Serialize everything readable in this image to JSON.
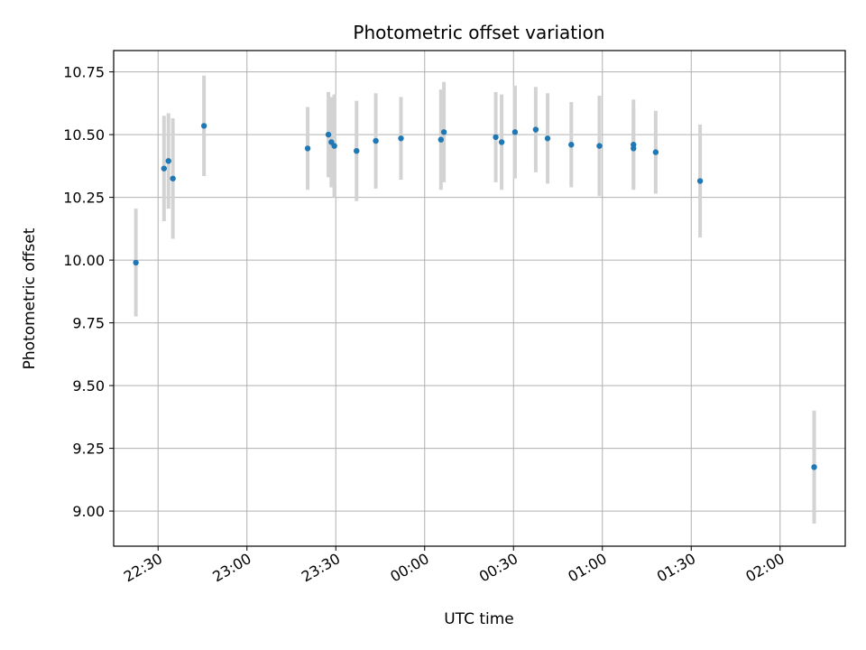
{
  "chart_data": {
    "type": "scatter",
    "title": "Photometric offset variation",
    "xlabel": "UTC time",
    "ylabel": "Photometric offset",
    "xlim": [
      "22:15",
      "02:22"
    ],
    "ylim": [
      8.86,
      10.835
    ],
    "x_ticks": [
      "22:30",
      "23:00",
      "23:30",
      "00:00",
      "00:30",
      "01:00",
      "01:30",
      "02:00"
    ],
    "y_ticks": [
      "9.00",
      "9.25",
      "9.50",
      "9.75",
      "10.00",
      "10.25",
      "10.50",
      "10.75"
    ],
    "grid": true,
    "colors": {
      "points": "#1f77b4",
      "error_bars": "#d3d3d3",
      "grid": "#b0b0b0"
    },
    "points": [
      {
        "x": "22:22:30",
        "y": 9.99,
        "err": 0.215
      },
      {
        "x": "22:32:00",
        "y": 10.365,
        "err": 0.21
      },
      {
        "x": "22:33:30",
        "y": 10.395,
        "err": 0.19
      },
      {
        "x": "22:35:00",
        "y": 10.325,
        "err": 0.24
      },
      {
        "x": "22:45:30",
        "y": 10.535,
        "err": 0.2
      },
      {
        "x": "23:20:30",
        "y": 10.445,
        "err": 0.165
      },
      {
        "x": "23:27:30",
        "y": 10.5,
        "err": 0.17
      },
      {
        "x": "23:28:30",
        "y": 10.47,
        "err": 0.18
      },
      {
        "x": "23:29:30",
        "y": 10.455,
        "err": 0.205
      },
      {
        "x": "23:37:00",
        "y": 10.435,
        "err": 0.2
      },
      {
        "x": "23:43:30",
        "y": 10.475,
        "err": 0.19
      },
      {
        "x": "23:52:00",
        "y": 10.485,
        "err": 0.165
      },
      {
        "x": "00:05:30",
        "y": 10.48,
        "err": 0.2
      },
      {
        "x": "00:06:30",
        "y": 10.51,
        "err": 0.2
      },
      {
        "x": "00:24:00",
        "y": 10.49,
        "err": 0.18
      },
      {
        "x": "00:26:00",
        "y": 10.47,
        "err": 0.19
      },
      {
        "x": "00:30:30",
        "y": 10.51,
        "err": 0.185
      },
      {
        "x": "00:37:30",
        "y": 10.52,
        "err": 0.17
      },
      {
        "x": "00:41:30",
        "y": 10.485,
        "err": 0.18
      },
      {
        "x": "00:49:30",
        "y": 10.46,
        "err": 0.17
      },
      {
        "x": "00:59:00",
        "y": 10.455,
        "err": 0.2
      },
      {
        "x": "01:10:30",
        "y": 10.46,
        "err": 0.18
      },
      {
        "x": "01:10:30",
        "y": 10.445,
        "err": 0.16
      },
      {
        "x": "01:18:00",
        "y": 10.43,
        "err": 0.165
      },
      {
        "x": "01:33:00",
        "y": 10.315,
        "err": 0.225
      },
      {
        "x": "02:11:30",
        "y": 9.175,
        "err": 0.225
      }
    ]
  }
}
